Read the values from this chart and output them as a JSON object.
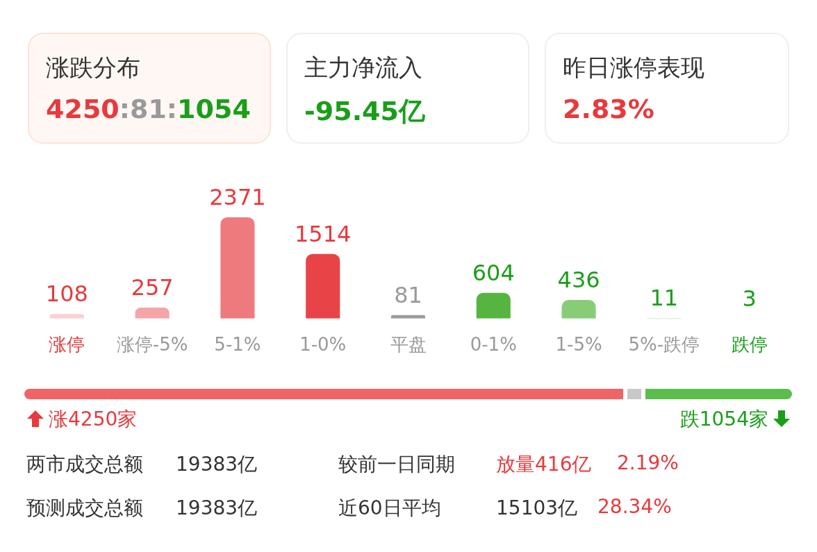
{
  "chart_data": {
    "type": "bar",
    "categories": [
      "涨停",
      "涨停-5%",
      "5-1%",
      "1-0%",
      "平盘",
      "0-1%",
      "1-5%",
      "5%-跌停",
      "跌停"
    ],
    "values": [
      108,
      257,
      2371,
      1514,
      81,
      604,
      436,
      11,
      3
    ],
    "colors": [
      "#fbd0d2",
      "#f4a5a8",
      "#ef7a7e",
      "#e84447",
      "#9b9b9b",
      "#55b540",
      "#87cd78",
      "#b0e0a4",
      "#d4efcc"
    ],
    "data_labels": true,
    "annotations": [
      "涨跌分布",
      "4250:81:1054",
      "主力净流入",
      "-95.45亿",
      "昨日涨停表现",
      "2.83%",
      "涨4250家",
      "跌1054家",
      "两市成交总额",
      "19383亿",
      "较前一日同期",
      "放量416亿",
      "2.19%",
      "预测成交总额",
      "19383亿",
      "近60日平均",
      "15103亿",
      "28.34%"
    ]
  }
}
